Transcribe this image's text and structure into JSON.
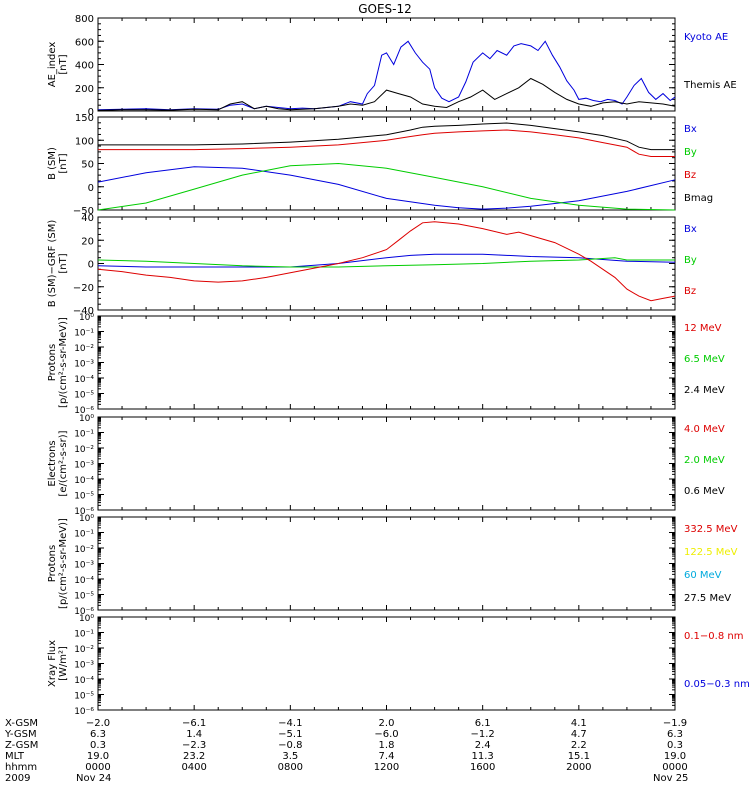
{
  "title": "GOES-12",
  "colors": {
    "blue": "#0000dd",
    "red": "#dd0000",
    "green": "#00cc00",
    "black": "#000000",
    "yellow": "#eeee00",
    "cyan": "#00aadd"
  },
  "chart_data": [
    {
      "type": "line",
      "panel": "ae",
      "ylabel_lines": [
        "AE_index",
        "[nT]"
      ],
      "ylim": [
        0,
        800
      ],
      "yticks": [
        0,
        200,
        400,
        600,
        800
      ],
      "ytick_labels": [
        "0",
        "200",
        "400",
        "600",
        "800"
      ],
      "series": [
        {
          "name": "Kyoto AE",
          "color": "blue",
          "x": [
            0,
            1,
            2,
            3,
            4,
            5,
            5.5,
            6,
            6.5,
            7,
            7.5,
            8,
            8.5,
            9,
            9.5,
            10,
            10.5,
            11,
            11.2,
            11.5,
            11.8,
            12,
            12.3,
            12.6,
            12.9,
            13.2,
            13.5,
            13.8,
            14,
            14.3,
            14.6,
            15,
            15.3,
            15.6,
            16,
            16.3,
            16.6,
            17,
            17.3,
            17.6,
            18,
            18.3,
            18.6,
            18.9,
            19.2,
            19.5,
            19.8,
            20,
            20.3,
            20.6,
            20.9,
            21.2,
            21.5,
            21.8,
            22,
            22.3,
            22.6,
            22.9,
            23.2,
            23.5,
            23.8,
            24
          ],
          "y": [
            10,
            15,
            20,
            10,
            20,
            15,
            50,
            60,
            20,
            40,
            30,
            20,
            25,
            20,
            30,
            40,
            80,
            60,
            150,
            220,
            480,
            500,
            400,
            550,
            600,
            500,
            420,
            360,
            200,
            110,
            80,
            120,
            250,
            420,
            500,
            450,
            520,
            480,
            560,
            580,
            560,
            520,
            600,
            480,
            380,
            260,
            180,
            100,
            110,
            90,
            80,
            100,
            90,
            60,
            120,
            220,
            280,
            160,
            100,
            150,
            90,
            120
          ]
        },
        {
          "name": "Themis AE",
          "color": "black",
          "x": [
            0,
            1,
            2,
            3,
            4,
            5,
            5.5,
            6,
            6.5,
            7,
            7.5,
            8,
            8.5,
            9,
            9.5,
            10,
            10.5,
            11,
            11.5,
            12,
            12.5,
            13,
            13.5,
            14,
            14.5,
            15,
            15.5,
            16,
            16.5,
            17,
            17.5,
            18,
            18.5,
            19,
            19.5,
            20,
            20.5,
            21,
            21.5,
            22,
            22.5,
            23,
            23.5,
            24
          ],
          "y": [
            5,
            10,
            10,
            8,
            15,
            10,
            60,
            80,
            20,
            40,
            20,
            10,
            15,
            20,
            30,
            40,
            60,
            50,
            80,
            180,
            150,
            120,
            60,
            40,
            30,
            80,
            120,
            180,
            100,
            150,
            200,
            280,
            230,
            160,
            100,
            60,
            40,
            70,
            80,
            60,
            80,
            70,
            60,
            40
          ]
        }
      ],
      "legend": [
        {
          "text": "Kyoto AE",
          "color": "blue"
        },
        {
          "text": "Themis AE",
          "color": "black"
        }
      ]
    },
    {
      "type": "line",
      "panel": "bsm",
      "ylabel_lines": [
        "B (SM)",
        "[nT]"
      ],
      "ylim": [
        -50,
        150
      ],
      "yticks": [
        -50,
        0,
        50,
        100,
        150
      ],
      "ytick_labels": [
        "−50",
        "0",
        "50",
        "100",
        "150"
      ],
      "series": [
        {
          "name": "Bx",
          "color": "blue",
          "x": [
            0,
            2,
            4,
            6,
            8,
            10,
            12,
            14,
            15,
            16,
            17,
            18,
            20,
            22,
            24
          ],
          "y": [
            10,
            30,
            43,
            40,
            25,
            5,
            -25,
            -40,
            -45,
            -48,
            -46,
            -42,
            -30,
            -10,
            15
          ]
        },
        {
          "name": "By",
          "color": "green",
          "x": [
            0,
            2,
            4,
            6,
            8,
            10,
            12,
            14,
            16,
            18,
            20,
            22,
            24
          ],
          "y": [
            -50,
            -35,
            -5,
            25,
            45,
            50,
            40,
            20,
            0,
            -25,
            -40,
            -48,
            -50
          ]
        },
        {
          "name": "Bz",
          "color": "red",
          "x": [
            0,
            2,
            4,
            6,
            8,
            10,
            12,
            13,
            13.5,
            14,
            15,
            16,
            17,
            18,
            19,
            20,
            21,
            22,
            22.5,
            23,
            24
          ],
          "y": [
            80,
            80,
            80,
            82,
            85,
            90,
            100,
            108,
            112,
            115,
            118,
            120,
            122,
            118,
            112,
            105,
            95,
            85,
            70,
            65,
            65
          ]
        },
        {
          "name": "Bmag",
          "color": "black",
          "x": [
            0,
            2,
            4,
            6,
            8,
            10,
            12,
            13,
            13.5,
            14,
            15,
            16,
            17,
            18,
            19,
            20,
            21,
            22,
            22.5,
            23,
            24
          ],
          "y": [
            90,
            90,
            90,
            92,
            96,
            102,
            112,
            122,
            128,
            130,
            132,
            135,
            137,
            132,
            125,
            118,
            110,
            98,
            85,
            80,
            80
          ]
        }
      ],
      "legend": [
        {
          "text": "Bx",
          "color": "blue"
        },
        {
          "text": "By",
          "color": "green"
        },
        {
          "text": "Bz",
          "color": "red"
        },
        {
          "text": "Bmag",
          "color": "black"
        }
      ]
    },
    {
      "type": "line",
      "panel": "bgrf",
      "ylabel_lines": [
        "B (SM)−GRF (SM)",
        "[nT]"
      ],
      "ylim": [
        -40,
        40
      ],
      "yticks": [
        -40,
        -20,
        0,
        20,
        40
      ],
      "ytick_labels": [
        "−40",
        "−20",
        "0",
        "20",
        "40"
      ],
      "series": [
        {
          "name": "Bx",
          "color": "blue",
          "x": [
            0,
            2,
            4,
            6,
            8,
            10,
            12,
            13,
            14,
            16,
            18,
            20,
            22,
            24
          ],
          "y": [
            -2,
            -3,
            -3,
            -3,
            -3,
            0,
            5,
            7,
            8,
            8,
            6,
            5,
            2,
            1
          ]
        },
        {
          "name": "By",
          "color": "green",
          "x": [
            0,
            2,
            4,
            6,
            8,
            10,
            12,
            14,
            16,
            18,
            20,
            21.5,
            22,
            24
          ],
          "y": [
            3,
            2,
            0,
            -2,
            -3,
            -3,
            -2,
            -1,
            0,
            2,
            3,
            5,
            3,
            3
          ]
        },
        {
          "name": "Bz",
          "color": "red",
          "x": [
            0,
            1,
            2,
            3,
            4,
            5,
            6,
            7,
            8,
            9,
            10,
            11,
            12,
            12.5,
            13,
            13.5,
            14,
            15,
            16,
            17,
            17.5,
            18,
            19,
            20,
            20.5,
            21,
            21.5,
            22,
            22.5,
            23,
            23.5,
            24
          ],
          "y": [
            -5,
            -7,
            -10,
            -12,
            -15,
            -16,
            -15,
            -12,
            -8,
            -4,
            0,
            5,
            12,
            20,
            28,
            35,
            36,
            34,
            30,
            25,
            27,
            24,
            18,
            8,
            2,
            -5,
            -12,
            -22,
            -28,
            -32,
            -30,
            -28
          ]
        }
      ],
      "legend": [
        {
          "text": "Bx",
          "color": "blue"
        },
        {
          "text": "By",
          "color": "green"
        },
        {
          "text": "Bz",
          "color": "red"
        }
      ]
    },
    {
      "type": "line",
      "panel": "protons1",
      "log": true,
      "ylabel_lines": [
        "Protons",
        "[p/(cm²-s-sr-MeV)]"
      ],
      "ytick_labels": [
        "10⁰",
        "10⁻¹",
        "10⁻²",
        "10⁻³",
        "10⁻⁴",
        "10⁻⁵",
        "10⁻⁶"
      ],
      "series": [],
      "legend": [
        {
          "text": "12 MeV",
          "color": "red"
        },
        {
          "text": "6.5 MeV",
          "color": "green"
        },
        {
          "text": "2.4 MeV",
          "color": "black"
        }
      ]
    },
    {
      "type": "line",
      "panel": "electrons",
      "log": true,
      "ylabel_lines": [
        "Electrons",
        "[e/(cm²-s-sr)]"
      ],
      "ytick_labels": [
        "10⁰",
        "10⁻¹",
        "10⁻²",
        "10⁻³",
        "10⁻⁴",
        "10⁻⁵",
        "10⁻⁶"
      ],
      "series": [],
      "legend": [
        {
          "text": "4.0 MeV",
          "color": "red"
        },
        {
          "text": "2.0 MeV",
          "color": "green"
        },
        {
          "text": "0.6 MeV",
          "color": "black"
        }
      ]
    },
    {
      "type": "line",
      "panel": "protons2",
      "log": true,
      "ylabel_lines": [
        "Protons",
        "[p/(cm²-s-sr-MeV)]"
      ],
      "ytick_labels": [
        "10⁰",
        "10⁻¹",
        "10⁻²",
        "10⁻³",
        "10⁻⁴",
        "10⁻⁵",
        "10⁻⁶"
      ],
      "series": [],
      "legend": [
        {
          "text": "332.5 MeV",
          "color": "red"
        },
        {
          "text": "122.5 MeV",
          "color": "yellow"
        },
        {
          "text": "60 MeV",
          "color": "cyan"
        },
        {
          "text": "27.5 MeV",
          "color": "black"
        }
      ]
    },
    {
      "type": "line",
      "panel": "xray",
      "log": true,
      "ylabel_lines": [
        "Xray  Flux",
        "[W/m²]"
      ],
      "ytick_labels": [
        "10⁰",
        "10⁻¹",
        "10⁻²",
        "10⁻³",
        "10⁻⁴",
        "10⁻⁵",
        "10⁻⁶"
      ],
      "series": [],
      "legend": [
        {
          "text": "0.1−0.8 nm",
          "color": "red"
        },
        {
          "text": "0.05−0.3 nm",
          "color": "blue"
        }
      ]
    }
  ],
  "xaxis": {
    "row_labels": [
      "X-GSM",
      "Y-GSM",
      "Z-GSM",
      "MLT",
      "hhmm",
      "2009"
    ],
    "columns": [
      {
        "x": 0,
        "values": [
          "−2.0",
          "6.3",
          "0.3",
          "19.0",
          "0000",
          "Nov 24"
        ]
      },
      {
        "x": 4,
        "values": [
          "−6.1",
          "1.4",
          "−2.3",
          "23.2",
          "0400",
          ""
        ]
      },
      {
        "x": 8,
        "values": [
          "−4.1",
          "−5.1",
          "−0.8",
          "3.5",
          "0800",
          ""
        ]
      },
      {
        "x": 12,
        "values": [
          "2.0",
          "−6.0",
          "1.8",
          "7.4",
          "1200",
          ""
        ]
      },
      {
        "x": 16,
        "values": [
          "6.1",
          "−1.2",
          "2.4",
          "11.3",
          "1600",
          ""
        ]
      },
      {
        "x": 20,
        "values": [
          "4.1",
          "4.7",
          "2.2",
          "15.1",
          "2000",
          ""
        ]
      },
      {
        "x": 24,
        "values": [
          "−1.9",
          "6.3",
          "0.3",
          "19.0",
          "0000",
          "Nov 25"
        ]
      }
    ]
  }
}
